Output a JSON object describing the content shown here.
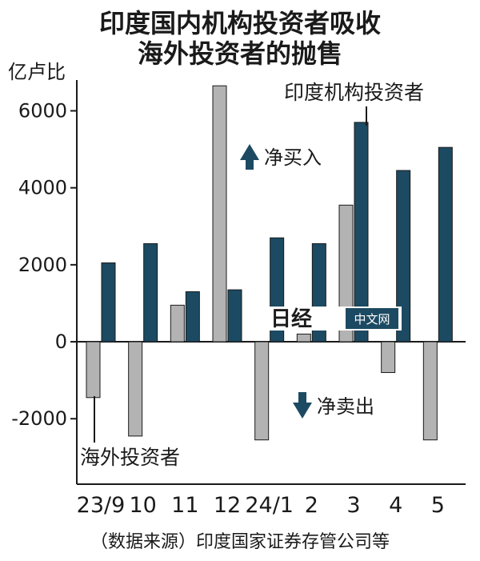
{
  "chart_data": {
    "type": "bar",
    "title_line1": "印度国内机构投资者吸收",
    "title_line2": "海外投资者的抛售",
    "ylabel": "亿卢比",
    "ylim": [
      -3700,
      6800
    ],
    "yticks": [
      6000,
      4000,
      2000,
      0,
      -2000
    ],
    "ytick_labels": [
      "6000",
      "4000",
      "2000",
      "0",
      "-2000"
    ],
    "categories": [
      "23/9",
      "10",
      "11",
      "12",
      "24/1",
      "2",
      "3",
      "4",
      "5"
    ],
    "series": [
      {
        "name": "海外投资者",
        "color": "#b3b3b3",
        "values": [
          -1450,
          -2450,
          950,
          6650,
          -2550,
          200,
          3550,
          -800,
          -2550
        ]
      },
      {
        "name": "印度机构投资者",
        "color": "#1c4a62",
        "values": [
          2050,
          2550,
          1300,
          1350,
          2700,
          2550,
          5700,
          4450,
          5050
        ]
      }
    ],
    "annotations": {
      "net_buy": "净买入",
      "net_sell": "净卖出"
    },
    "source": "（数据来源）印度国家证券存管公司等"
  },
  "watermark": {
    "logo": "日经",
    "text": "中文网"
  },
  "colors": {
    "arrow": "#1c4a62",
    "axis": "#1a1a1a"
  }
}
